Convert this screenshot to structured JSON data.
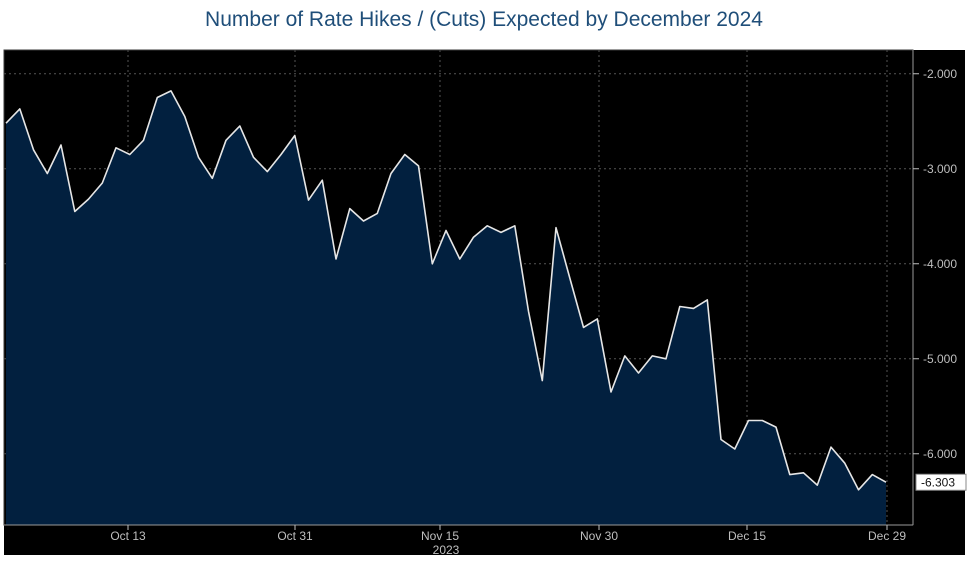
{
  "chart_data": {
    "type": "area",
    "title": "Number of Rate Hikes / (Cuts) Expected by December 2024",
    "xlabel": "",
    "ylabel": "",
    "year_label": "2023",
    "x_tick_labels": [
      "Oct 13",
      "Oct 31",
      "Nov 15",
      "Nov 30",
      "Dec 15",
      "Dec 29"
    ],
    "y_tick_labels": [
      "-2.000",
      "-3.000",
      "-4.000",
      "-5.000",
      "-6.000"
    ],
    "y_ticks": [
      -2,
      -3,
      -4,
      -5,
      -6
    ],
    "ylim": [
      -6.75,
      -1.75
    ],
    "last_value_label": "-6.303",
    "grid": true,
    "colors": {
      "background": "#000000",
      "fill": "#02203f",
      "line": "#e6e6e6",
      "grid": "#555555"
    },
    "series": [
      {
        "values": [
          -2.52,
          -2.37,
          -2.8,
          -3.05,
          -2.75,
          -3.45,
          -3.32,
          -3.15,
          -2.78,
          -2.85,
          -2.7,
          -2.25,
          -2.18,
          -2.45,
          -2.88,
          -3.1,
          -2.7,
          -2.55,
          -2.88,
          -3.03,
          -2.85,
          -2.65,
          -3.33,
          -3.12,
          -3.95,
          -3.42,
          -3.55,
          -3.47,
          -3.05,
          -2.85,
          -2.97,
          -4.0,
          -3.65,
          -3.95,
          -3.72,
          -3.6,
          -3.67,
          -3.6,
          -4.5,
          -5.23,
          -3.62,
          -4.15,
          -4.67,
          -4.58,
          -5.35,
          -4.97,
          -5.15,
          -4.97,
          -5.0,
          -4.45,
          -4.47,
          -4.38,
          -5.85,
          -5.95,
          -5.65,
          -5.65,
          -5.72,
          -6.22,
          -6.2,
          -6.33,
          -5.93,
          -6.1,
          -6.38,
          -6.22,
          -6.3
        ]
      }
    ]
  }
}
